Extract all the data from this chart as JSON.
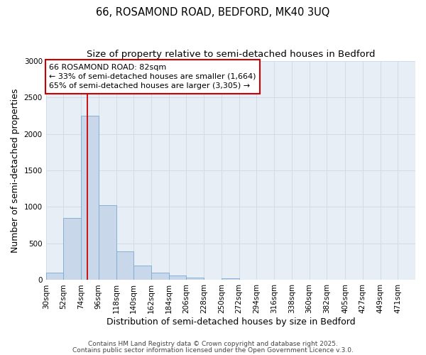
{
  "title1": "66, ROSAMOND ROAD, BEDFORD, MK40 3UQ",
  "title2": "Size of property relative to semi-detached houses in Bedford",
  "xlabel": "Distribution of semi-detached houses by size in Bedford",
  "ylabel": "Number of semi-detached properties",
  "property_label": "66 ROSAMOND ROAD: 82sqm",
  "pct_smaller": 33,
  "pct_larger": 65,
  "count_smaller": 1664,
  "count_larger": 3305,
  "bin_starts": [
    30,
    52,
    74,
    96,
    118,
    140,
    162,
    184,
    206,
    228,
    250,
    272,
    294,
    316,
    338,
    360,
    382,
    405,
    427,
    449,
    471
  ],
  "bin_width": 22,
  "bar_heights": [
    100,
    850,
    2250,
    1020,
    390,
    200,
    100,
    60,
    30,
    5,
    25,
    5,
    5,
    3,
    2,
    2,
    1,
    1,
    1,
    1,
    0
  ],
  "bar_color": "#c8d8ea",
  "bar_edge_color": "#7aaad0",
  "vline_x": 82,
  "vline_color": "#cc0000",
  "annotation_box_color": "#cc0000",
  "ylim": [
    0,
    3000
  ],
  "yticks": [
    0,
    500,
    1000,
    1500,
    2000,
    2500,
    3000
  ],
  "grid_color": "#d0dcea",
  "bg_color": "#e8eef6",
  "footer1": "Contains HM Land Registry data © Crown copyright and database right 2025.",
  "footer2": "Contains public sector information licensed under the Open Government Licence v.3.0.",
  "title_fontsize": 10.5,
  "subtitle_fontsize": 9.5,
  "axis_label_fontsize": 9,
  "tick_fontsize": 7.5,
  "annotation_fontsize": 8,
  "footer_fontsize": 6.5
}
